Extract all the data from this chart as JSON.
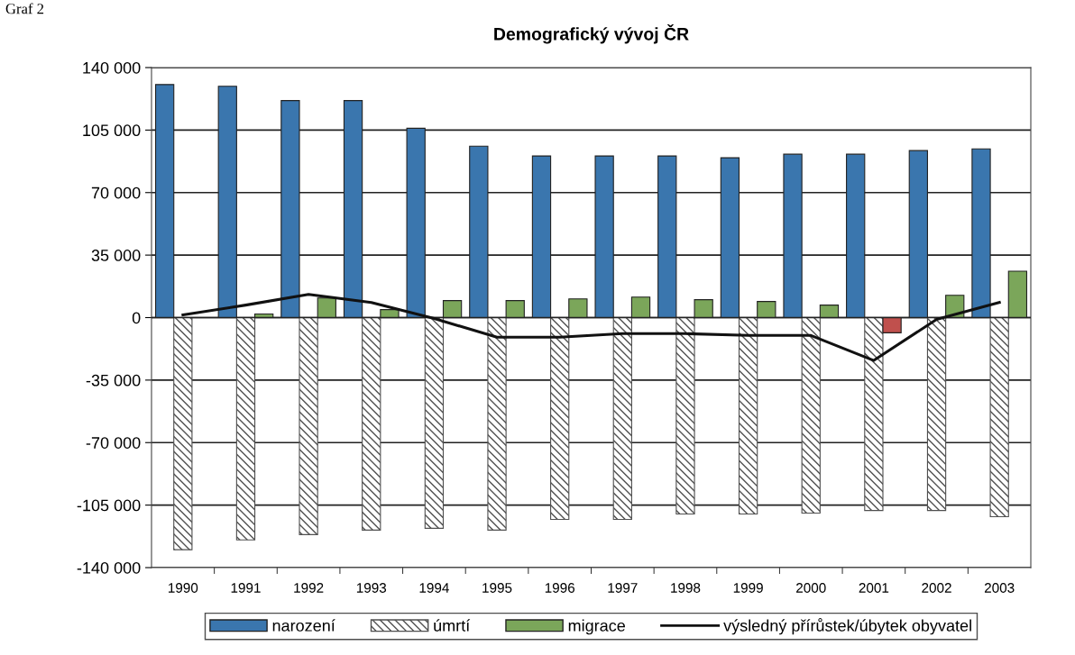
{
  "chart_data": {
    "type": "bar",
    "title": "Demografický vývoj ČR",
    "annotations": [
      "Graf 2"
    ],
    "categories": [
      "1990",
      "1991",
      "1992",
      "1993",
      "1994",
      "1995",
      "1996",
      "1997",
      "1998",
      "1999",
      "2000",
      "2001",
      "2002",
      "2003"
    ],
    "series": [
      {
        "name": "narození",
        "color": "#3a76ae",
        "values": [
          130500,
          129500,
          121500,
          121500,
          106000,
          96000,
          90500,
          90500,
          90500,
          89500,
          91500,
          91500,
          93500,
          94500
        ]
      },
      {
        "name": "úmrtí",
        "color": "#505050",
        "values": [
          -130000,
          -124500,
          -121500,
          -119000,
          -118000,
          -119000,
          -113000,
          -113000,
          -110000,
          -110000,
          -109500,
          -108000,
          -108000,
          -111500
        ]
      },
      {
        "name": "migrace",
        "color": "#7ba65a",
        "colors": [
          "#7ba65a",
          "#7ba65a",
          "#7ba65a",
          "#7ba65a",
          "#7ba65a",
          "#7ba65a",
          "#7ba65a",
          "#7ba65a",
          "#7ba65a",
          "#7ba65a",
          "#7ba65a",
          "#c0504d",
          "#7ba65a",
          "#7ba65a"
        ],
        "values": [
          null,
          2000,
          11000,
          4500,
          9500,
          9500,
          10500,
          11500,
          10000,
          9000,
          7000,
          -8500,
          12500,
          26000
        ]
      },
      {
        "name": "výsledný přírůstek/úbytek obyvatel",
        "type": "line",
        "color": "#111111",
        "values": [
          1500,
          7000,
          13000,
          8500,
          -500,
          -11000,
          -11000,
          -9000,
          -9000,
          -10000,
          -10000,
          -24000,
          -1000,
          8500
        ]
      }
    ],
    "ylim": [
      -140000,
      140000
    ],
    "yticks": [
      {
        "value": -140000,
        "label": "-140 000"
      },
      {
        "value": -105000,
        "label": "-105 000"
      },
      {
        "value": -70000,
        "label": "-70 000"
      },
      {
        "value": -35000,
        "label": "-35 000"
      },
      {
        "value": 0,
        "label": "0"
      },
      {
        "value": 35000,
        "label": "35 000"
      },
      {
        "value": 70000,
        "label": "70 000"
      },
      {
        "value": 105000,
        "label": "105 000"
      },
      {
        "value": 140000,
        "label": "140 000"
      }
    ],
    "grid": "y",
    "legend": "bottom",
    "marker": "none",
    "line_style": "solid"
  }
}
